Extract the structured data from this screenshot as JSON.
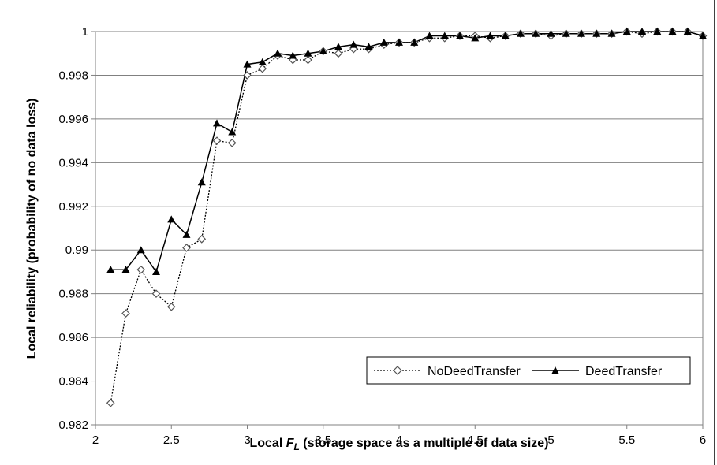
{
  "chart_data": {
    "type": "line",
    "title": "",
    "xlabel_prefix": "Local ",
    "xlabel_symbol": "F",
    "xlabel_subscript": "L",
    "xlabel_suffix": " (storage space as a multiple of data size)",
    "ylabel": "Local reliability (probability of no data loss)",
    "xlim": [
      2,
      6
    ],
    "ylim": [
      0.982,
      1.0
    ],
    "x_ticks": [
      "2",
      "2.5",
      "3",
      "3.5",
      "4",
      "4.5",
      "5",
      "5.5",
      "6"
    ],
    "y_ticks": [
      "0.982",
      "0.984",
      "0.986",
      "0.988",
      "0.99",
      "0.992",
      "0.994",
      "0.996",
      "0.998",
      "1"
    ],
    "grid": "horizontal",
    "legend_position": "bottom-right",
    "series": [
      {
        "name": "NoDeedTransfer",
        "line_style": "dotted",
        "marker": "open-diamond",
        "color": "#000000",
        "x": [
          2.1,
          2.2,
          2.3,
          2.4,
          2.5,
          2.6,
          2.7,
          2.8,
          2.9,
          3.0,
          3.1,
          3.2,
          3.3,
          3.4,
          3.5,
          3.6,
          3.7,
          3.8,
          3.9,
          4.0,
          4.1,
          4.2,
          4.3,
          4.4,
          4.5,
          4.6,
          4.7,
          4.8,
          4.9,
          5.0,
          5.1,
          5.2,
          5.3,
          5.4,
          5.5,
          5.6,
          5.7,
          5.8,
          5.9,
          6.0
        ],
        "values": [
          0.983,
          0.9871,
          0.9891,
          0.988,
          0.9874,
          0.9901,
          0.9905,
          0.995,
          0.9949,
          0.998,
          0.9983,
          0.9989,
          0.9987,
          0.9987,
          0.9991,
          0.999,
          0.9992,
          0.9992,
          0.9994,
          0.9995,
          0.9995,
          0.9997,
          0.9997,
          0.9998,
          0.9998,
          0.9997,
          0.9998,
          0.9999,
          0.9999,
          0.9998,
          0.9999,
          0.9999,
          0.9999,
          0.9999,
          1.0,
          0.9999,
          1.0,
          1.0,
          1.0,
          0.9998
        ]
      },
      {
        "name": "DeedTransfer",
        "line_style": "solid",
        "marker": "filled-triangle",
        "color": "#000000",
        "x": [
          2.1,
          2.2,
          2.3,
          2.4,
          2.5,
          2.6,
          2.7,
          2.8,
          2.9,
          3.0,
          3.1,
          3.2,
          3.3,
          3.4,
          3.5,
          3.6,
          3.7,
          3.8,
          3.9,
          4.0,
          4.1,
          4.2,
          4.3,
          4.4,
          4.5,
          4.6,
          4.7,
          4.8,
          4.9,
          5.0,
          5.1,
          5.2,
          5.3,
          5.4,
          5.5,
          5.6,
          5.7,
          5.8,
          5.9,
          6.0
        ],
        "values": [
          0.9891,
          0.9891,
          0.99,
          0.989,
          0.9914,
          0.9907,
          0.9931,
          0.9958,
          0.9954,
          0.9985,
          0.9986,
          0.999,
          0.9989,
          0.999,
          0.9991,
          0.9993,
          0.9994,
          0.9993,
          0.9995,
          0.9995,
          0.9995,
          0.9998,
          0.9998,
          0.9998,
          0.9997,
          0.9998,
          0.9998,
          0.9999,
          0.9999,
          0.9999,
          0.9999,
          0.9999,
          0.9999,
          0.9999,
          1.0,
          1.0,
          1.0,
          1.0,
          1.0,
          0.9998
        ]
      }
    ]
  }
}
